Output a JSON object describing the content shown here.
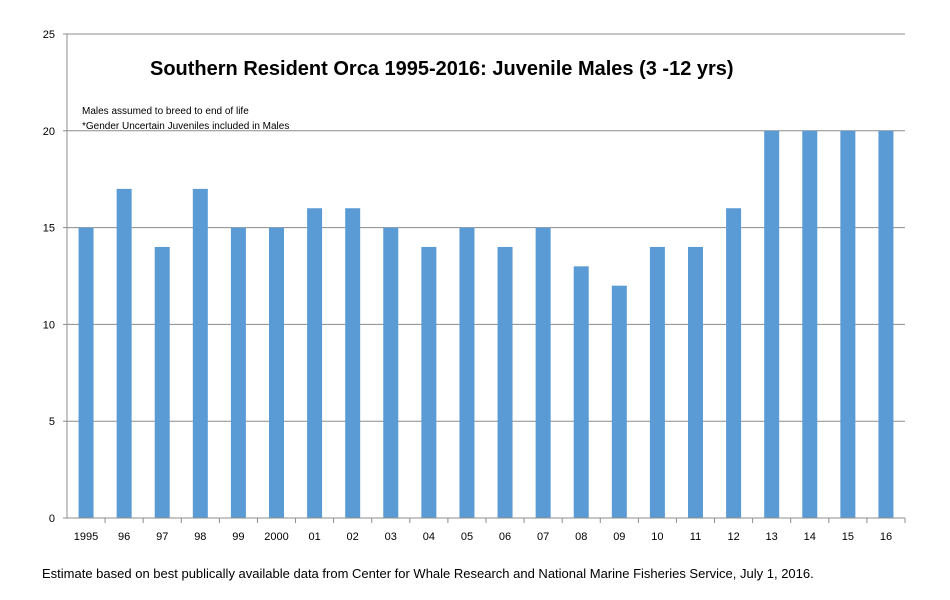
{
  "chart_data": {
    "type": "bar",
    "title": "Southern Resident Orca 1995-2016: Juvenile Males (3 -12 yrs)",
    "annotations": [
      "Males assumed to breed to end of life",
      "*Gender Uncertain Juveniles included in Males"
    ],
    "categories": [
      "1995",
      "96",
      "97",
      "98",
      "99",
      "2000",
      "01",
      "02",
      "03",
      "04",
      "05",
      "06",
      "07",
      "08",
      "09",
      "10",
      "11",
      "12",
      "13",
      "14",
      "15",
      "16"
    ],
    "values": [
      15,
      17,
      14,
      17,
      15,
      15,
      16,
      16,
      15,
      14,
      15,
      14,
      15,
      13,
      12,
      14,
      14,
      16,
      20,
      20,
      20,
      20
    ],
    "ylim": [
      0,
      25
    ],
    "yticks": [
      0,
      5,
      10,
      15,
      20,
      25
    ],
    "xlabel": "",
    "ylabel": "",
    "grid": true,
    "bar_color": "#5b9bd5",
    "grid_color": "#8c8c8c"
  },
  "footer": "Estimate based on best publically available data from Center for Whale Research and National Marine Fisheries Service, July 1, 2016."
}
